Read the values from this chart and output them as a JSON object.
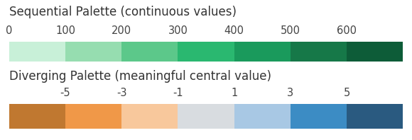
{
  "seq_title": "Sequential Palette (continuous values)",
  "seq_tick_labels": [
    "0",
    "100",
    "200",
    "300",
    "400",
    "500",
    "600"
  ],
  "seq_colors": [
    "#c8f0d8",
    "#96ddb0",
    "#5cc88a",
    "#2ab870",
    "#1a9a5c",
    "#167848",
    "#0d5c38"
  ],
  "div_title": "Diverging Palette (meaningful central value)",
  "div_tick_labels": [
    "-5",
    "-3",
    "-1",
    "1",
    "3",
    "5"
  ],
  "div_colors": [
    "#c07830",
    "#f09848",
    "#f8c89c",
    "#d8dce0",
    "#a8c8e4",
    "#3c8cc4",
    "#2a5a80"
  ],
  "background_color": "#ffffff",
  "title_fontsize": 12,
  "tick_fontsize": 10.5,
  "title_color": "#333333",
  "tick_color": "#444444"
}
